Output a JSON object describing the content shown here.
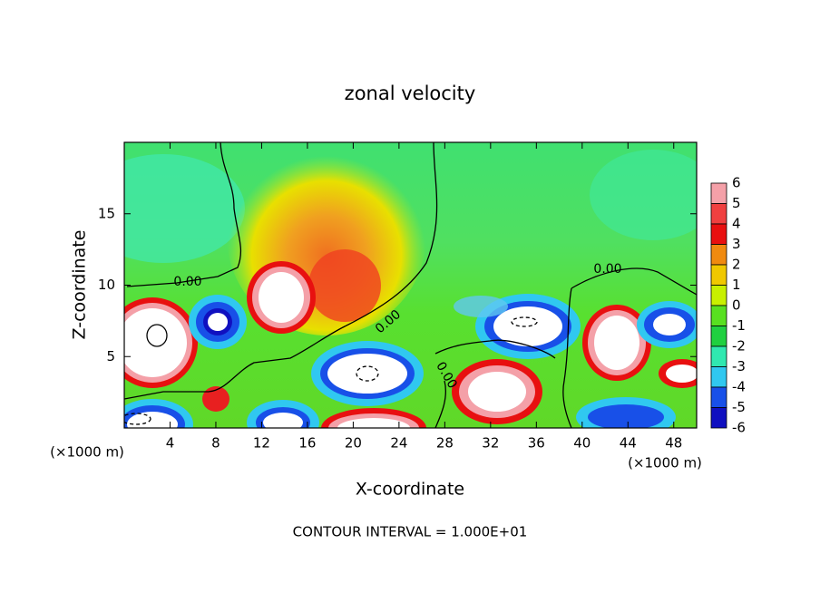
{
  "chart_data": {
    "type": "contour",
    "title": "zonal velocity",
    "x_label": "X-coordinate",
    "y_label": "Z-coordinate",
    "x_unit": "(×1000 m)",
    "y_unit": "(×1000 m)",
    "xlim": [
      0,
      50
    ],
    "ylim": [
      0,
      20
    ],
    "xticks": [
      4,
      8,
      12,
      16,
      20,
      24,
      28,
      32,
      36,
      40,
      44,
      48
    ],
    "yticks": [
      5,
      10,
      15
    ],
    "contour_labels": [
      "0.00",
      "0.00",
      "0.00",
      "0.00"
    ],
    "footer": "CONTOUR INTERVAL = 1.000E+01",
    "colorbar": {
      "levels": [
        6,
        5,
        4,
        3,
        2,
        1,
        0,
        -1,
        -2,
        -3,
        -4,
        -5,
        -6
      ],
      "colors": [
        "#f4a0a8",
        "#f04040",
        "#e81010",
        "#f08a10",
        "#f0c800",
        "#c8f000",
        "#58e020",
        "#20d040",
        "#30e8b0",
        "#30c8f0",
        "#1850e8",
        "#1010c0",
        "#6010a0"
      ]
    }
  }
}
